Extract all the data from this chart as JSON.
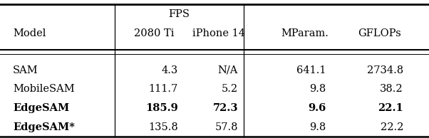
{
  "rows": [
    [
      "SAM",
      "4.3",
      "N/A",
      "641.1",
      "2734.8",
      false,
      false
    ],
    [
      "MobileSAM",
      "111.7",
      "5.2",
      "9.8",
      "38.2",
      false,
      false
    ],
    [
      "EdgeSAM",
      "185.9",
      "72.3",
      "9.6",
      "22.1",
      true,
      true
    ],
    [
      "EdgeSAM*",
      "135.8",
      "57.8",
      "9.8",
      "22.2",
      true,
      false
    ]
  ],
  "background_color": "#ffffff",
  "text_color": "#000000",
  "fontsize": 10.5,
  "vline1": 0.268,
  "vline2": 0.568
}
